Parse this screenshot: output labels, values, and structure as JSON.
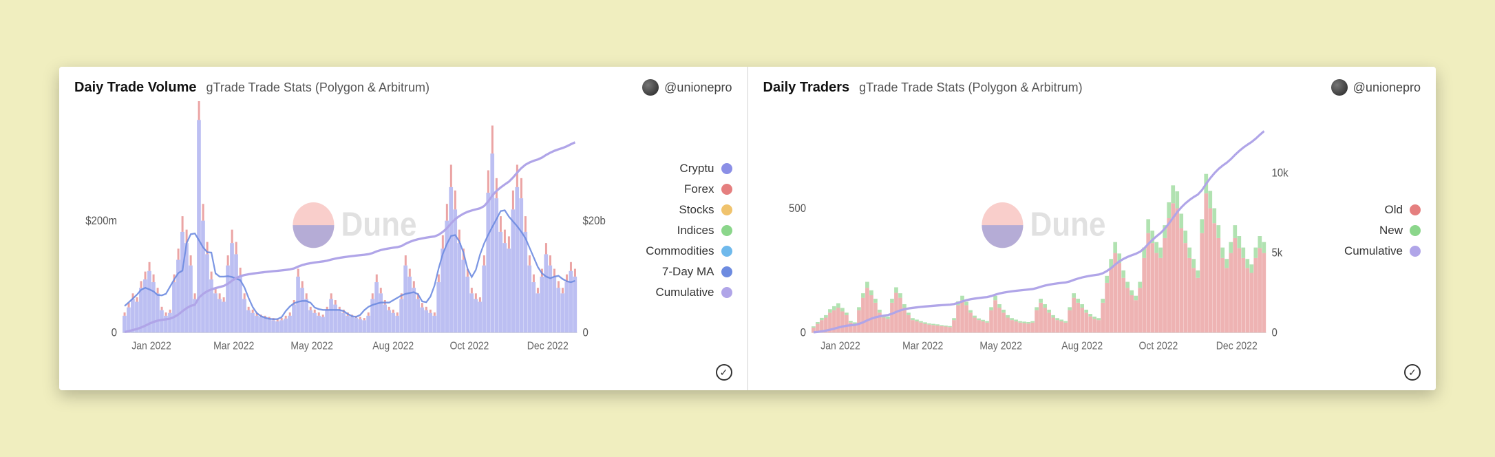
{
  "page_background": "#f0eebf",
  "divider_color": "#d0d0d0",
  "panels": [
    {
      "id": "volume_panel",
      "title": "Daiy Trade Volume",
      "subtitle": "gTrade Trade Stats (Polygon & Arbitrum)",
      "author_handle": "@unionepro",
      "watermark": "Dune",
      "watermark_circle_colors": [
        "#f4a6a0",
        "#7e8fe0"
      ],
      "legend": [
        {
          "label": "Cryptu",
          "color": "#8b8fe6"
        },
        {
          "label": "Forex",
          "color": "#e57f7f"
        },
        {
          "label": "Stocks",
          "color": "#f0c36d"
        },
        {
          "label": "Indices",
          "color": "#8bd68b"
        },
        {
          "label": "Commodities",
          "color": "#6fb9ec"
        },
        {
          "label": "7-Day MA",
          "color": "#6d8be0"
        },
        {
          "label": "Cumulative",
          "color": "#b0a5e8"
        }
      ],
      "chart": {
        "type": "mixed_bar_line",
        "background_color": "#ffffff",
        "y_left_label": "$200m",
        "y_left_ticks": [
          {
            "v": 0,
            "label": "0"
          },
          {
            "v": 200,
            "label": "$200m"
          }
        ],
        "y_left_lim": [
          0,
          400
        ],
        "y_right_label": "$20b",
        "y_right_ticks": [
          {
            "v": 0,
            "label": "0"
          },
          {
            "v": 20,
            "label": "$20b"
          }
        ],
        "y_right_lim": [
          0,
          40
        ],
        "x_ticks": [
          "Jan 2022",
          "Mar 2022",
          "May 2022",
          "Aug 2022",
          "Oct 2022",
          "Dec 2022"
        ],
        "x_tick_positions": [
          0.02,
          0.2,
          0.37,
          0.55,
          0.72,
          0.89
        ],
        "baseline_color": "#cfcfcf",
        "bars": {
          "count": 110,
          "colors": {
            "crypto": "#a6a9ee",
            "forex": "#e99a9a"
          },
          "heights_crypto": [
            30,
            45,
            60,
            55,
            80,
            95,
            110,
            90,
            70,
            40,
            30,
            35,
            90,
            130,
            180,
            160,
            120,
            60,
            380,
            200,
            140,
            95,
            70,
            60,
            55,
            120,
            160,
            140,
            100,
            60,
            40,
            35,
            30,
            28,
            26,
            24,
            22,
            20,
            22,
            25,
            30,
            50,
            100,
            80,
            60,
            40,
            35,
            30,
            28,
            40,
            60,
            50,
            40,
            35,
            30,
            28,
            26,
            24,
            22,
            30,
            60,
            90,
            70,
            50,
            40,
            35,
            30,
            60,
            120,
            100,
            80,
            60,
            45,
            40,
            35,
            30,
            90,
            150,
            200,
            260,
            220,
            160,
            130,
            100,
            70,
            60,
            55,
            120,
            250,
            320,
            240,
            180,
            160,
            150,
            220,
            260,
            240,
            180,
            120,
            90,
            70,
            100,
            140,
            120,
            100,
            80,
            70,
            90,
            110,
            100
          ],
          "heights_forex": [
            6,
            8,
            10,
            8,
            12,
            14,
            16,
            14,
            10,
            6,
            6,
            6,
            14,
            20,
            28,
            24,
            18,
            10,
            40,
            30,
            22,
            14,
            10,
            10,
            8,
            18,
            24,
            22,
            16,
            10,
            6,
            6,
            6,
            4,
            4,
            4,
            4,
            4,
            4,
            5,
            6,
            8,
            14,
            12,
            10,
            6,
            6,
            6,
            4,
            6,
            10,
            8,
            6,
            6,
            6,
            4,
            4,
            4,
            4,
            6,
            10,
            14,
            10,
            8,
            6,
            6,
            6,
            10,
            18,
            14,
            12,
            10,
            8,
            6,
            6,
            6,
            14,
            24,
            30,
            40,
            34,
            24,
            20,
            14,
            10,
            10,
            8,
            18,
            40,
            50,
            36,
            28,
            24,
            22,
            34,
            40,
            36,
            28,
            18,
            14,
            10,
            14,
            20,
            18,
            14,
            12,
            10,
            14,
            16,
            14
          ]
        },
        "ma_line_color": "#6d8be0",
        "cumulative_line_color": "#b0a5e8"
      }
    },
    {
      "id": "traders_panel",
      "title": "Daily Traders",
      "subtitle": "gTrade Trade Stats (Polygon & Arbitrum)",
      "author_handle": "@unionepro",
      "watermark": "Dune",
      "watermark_circle_colors": [
        "#f4a6a0",
        "#7e8fe0"
      ],
      "legend": [
        {
          "label": "Old",
          "color": "#e57f7f"
        },
        {
          "label": "New",
          "color": "#8bd68b"
        },
        {
          "label": "Cumulative",
          "color": "#b0a5e8"
        }
      ],
      "chart": {
        "type": "stacked_bar_line",
        "background_color": "#ffffff",
        "y_left_label": "500",
        "y_left_ticks": [
          {
            "v": 0,
            "label": "0"
          },
          {
            "v": 500,
            "label": "500"
          }
        ],
        "y_left_lim": [
          0,
          900
        ],
        "y_right_ticks": [
          {
            "v": 0,
            "label": "0"
          },
          {
            "v": 5,
            "label": "5k"
          },
          {
            "v": 10,
            "label": "10k"
          }
        ],
        "y_right_lim": [
          0,
          14
        ],
        "x_ticks": [
          "Jan 2022",
          "Mar 2022",
          "May 2022",
          "Aug 2022",
          "Oct 2022",
          "Dec 2022"
        ],
        "x_tick_positions": [
          0.02,
          0.2,
          0.37,
          0.55,
          0.72,
          0.89
        ],
        "baseline_color": "#cfcfcf",
        "bars": {
          "count": 110,
          "colors": {
            "old": "#eba6a6",
            "new": "#a9dfa9"
          },
          "heights_old": [
            20,
            35,
            50,
            60,
            80,
            90,
            100,
            85,
            70,
            40,
            35,
            90,
            140,
            180,
            150,
            120,
            80,
            60,
            55,
            120,
            160,
            140,
            100,
            70,
            50,
            45,
            40,
            35,
            32,
            30,
            28,
            26,
            24,
            22,
            50,
            110,
            130,
            110,
            80,
            60,
            50,
            45,
            40,
            90,
            130,
            100,
            80,
            60,
            50,
            45,
            40,
            38,
            36,
            40,
            90,
            120,
            100,
            80,
            60,
            50,
            45,
            40,
            90,
            140,
            120,
            100,
            80,
            65,
            55,
            50,
            120,
            200,
            260,
            320,
            280,
            220,
            180,
            150,
            130,
            180,
            300,
            400,
            360,
            320,
            300,
            380,
            460,
            520,
            500,
            420,
            360,
            300,
            260,
            220,
            400,
            560,
            500,
            440,
            380,
            300,
            260,
            320,
            380,
            340,
            300,
            260,
            240,
            300,
            340,
            320
          ],
          "heights_new": [
            5,
            7,
            9,
            10,
            14,
            16,
            18,
            14,
            10,
            7,
            6,
            12,
            18,
            24,
            20,
            16,
            12,
            10,
            9,
            16,
            22,
            18,
            14,
            10,
            8,
            7,
            6,
            6,
            5,
            5,
            5,
            4,
            4,
            4,
            8,
            16,
            18,
            14,
            10,
            8,
            7,
            6,
            6,
            12,
            18,
            14,
            12,
            10,
            8,
            7,
            6,
            6,
            6,
            6,
            12,
            16,
            14,
            12,
            10,
            8,
            7,
            6,
            12,
            18,
            16,
            14,
            12,
            10,
            9,
            8,
            16,
            28,
            36,
            44,
            38,
            30,
            24,
            20,
            18,
            24,
            42,
            56,
            50,
            44,
            42,
            52,
            64,
            72,
            68,
            58,
            50,
            42,
            36,
            30,
            56,
            78,
            70,
            60,
            52,
            42,
            36,
            44,
            52,
            48,
            42,
            36,
            34,
            42,
            48,
            44
          ]
        },
        "cumulative_line_color": "#b0a5e8"
      }
    }
  ]
}
